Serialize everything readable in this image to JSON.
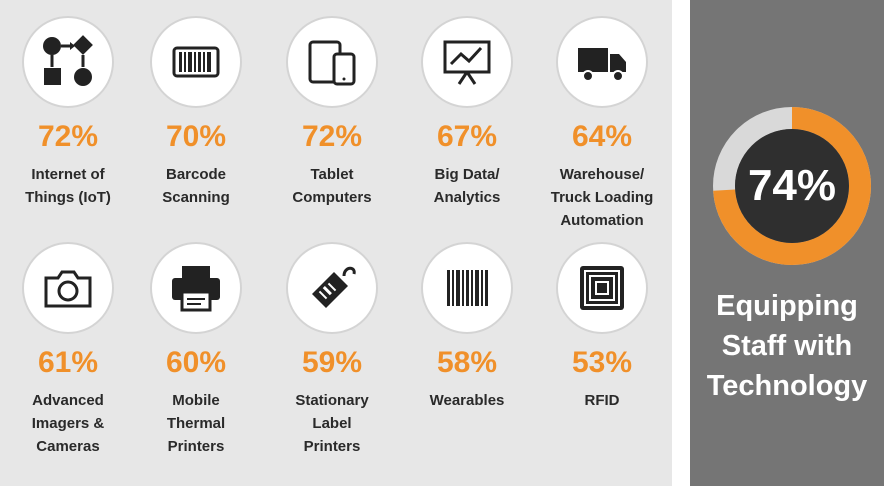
{
  "stats": [
    {
      "percent": "72%",
      "label_lines": [
        "Internet of",
        "Things (IoT)"
      ],
      "icon": "iot-flowchart-icon"
    },
    {
      "percent": "70%",
      "label_lines": [
        "Barcode",
        "Scanning"
      ],
      "icon": "barcode-scanner-icon"
    },
    {
      "percent": "72%",
      "label_lines": [
        "Tablet",
        "Computers"
      ],
      "icon": "tablet-icon"
    },
    {
      "percent": "67%",
      "label_lines": [
        "Big Data/",
        "Analytics"
      ],
      "icon": "analytics-board-icon"
    },
    {
      "percent": "64%",
      "label_lines": [
        "Warehouse/",
        "Truck Loading",
        "Automation"
      ],
      "icon": "truck-icon"
    },
    {
      "percent": "61%",
      "label_lines": [
        "Advanced",
        "Imagers &",
        "Cameras"
      ],
      "icon": "camera-icon"
    },
    {
      "percent": "60%",
      "label_lines": [
        "Mobile",
        "Thermal",
        "Printers"
      ],
      "icon": "printer-icon"
    },
    {
      "percent": "59%",
      "label_lines": [
        "Stationary",
        "Label",
        "Printers"
      ],
      "icon": "label-tag-icon"
    },
    {
      "percent": "58%",
      "label_lines": [
        "Wearables"
      ],
      "icon": "barcode-icon"
    },
    {
      "percent": "53%",
      "label_lines": [
        "RFID"
      ],
      "icon": "rfid-chip-icon"
    }
  ],
  "summary": {
    "percent": "74%",
    "progress": 0.74,
    "title_lines": [
      "Equipping",
      "Staff with",
      "Technology"
    ]
  },
  "colors": {
    "accent": "#f0902a",
    "panel": "#757575",
    "background": "#e7e7e7",
    "donut_track": "#d9d9d9",
    "donut_center": "#2f2f2f"
  }
}
